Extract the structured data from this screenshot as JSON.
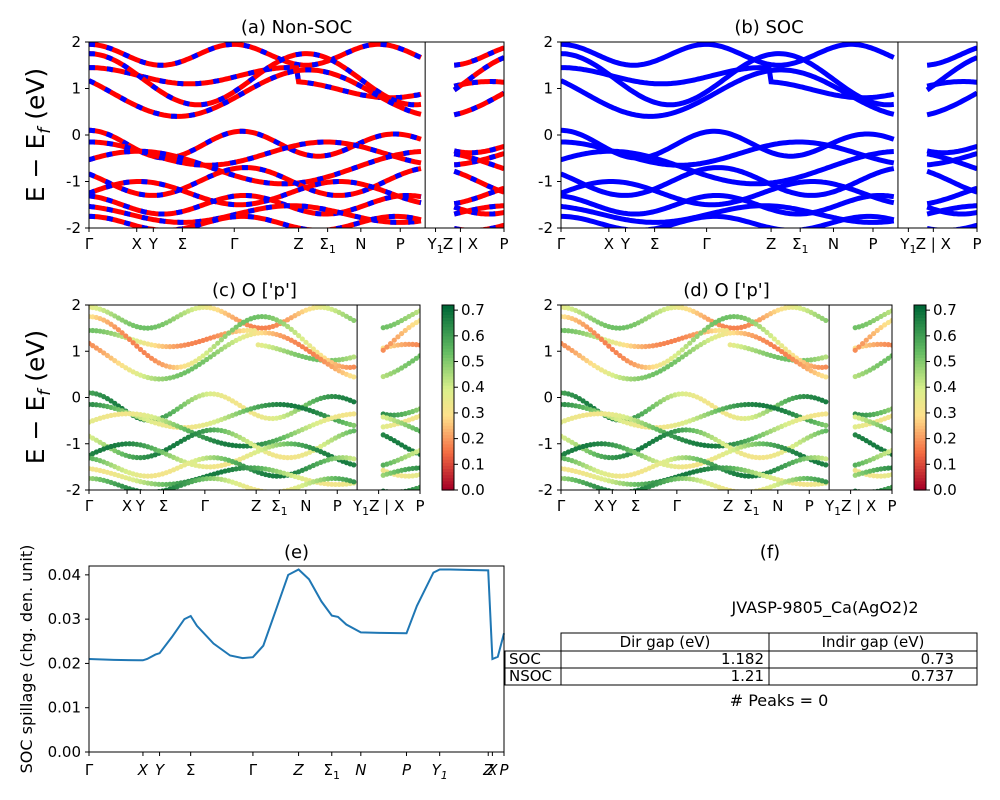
{
  "figure": {
    "title_text": "JVASP-9805_Ca(AgO2)2",
    "peaks_text": "# Peaks = 0",
    "y_axis_label_main": "E − E",
    "y_axis_label_sub": "f",
    "y_axis_label_unit": " (eV)"
  },
  "chart_data": [
    {
      "id": "a",
      "type": "line",
      "title": "(a) Non-SOC",
      "ylim": [
        -2,
        2
      ],
      "yticks": [
        -2,
        -1,
        0,
        1,
        2
      ],
      "xticks": [
        "Γ",
        "X",
        "Y",
        "Σ",
        "Γ",
        "Z",
        "Σ1",
        "N",
        "P",
        "Y1",
        "Z | X",
        "P"
      ],
      "xtick_pos": [
        0,
        0.115,
        0.155,
        0.225,
        0.35,
        0.505,
        0.575,
        0.655,
        0.75,
        0.835,
        0.895,
        1.0
      ],
      "series_colors": [
        "#ff0000",
        "#0000ff"
      ]
    },
    {
      "id": "b",
      "type": "line",
      "title": "(b) SOC",
      "ylim": [
        -2,
        2
      ],
      "yticks": [
        -2,
        -1,
        0,
        1,
        2
      ],
      "xticks": [
        "Γ",
        "X",
        "Y",
        "Σ",
        "Γ",
        "Z",
        "Σ1",
        "N",
        "P",
        "Y1",
        "Z | X",
        "P"
      ],
      "xtick_pos": [
        0,
        0.115,
        0.155,
        0.225,
        0.35,
        0.505,
        0.575,
        0.655,
        0.75,
        0.835,
        0.895,
        1.0
      ],
      "series_colors": [
        "#0000ff"
      ]
    },
    {
      "id": "c",
      "type": "scatter",
      "title": "(c)  O ['p']",
      "ylim": [
        -2,
        2
      ],
      "yticks": [
        -2,
        -1,
        0,
        1,
        2
      ],
      "xticks": [
        "Γ",
        "X",
        "Y",
        "Σ",
        "Γ",
        "Z",
        "Σ1",
        "N",
        "P",
        "Y1Z | X",
        "P"
      ],
      "xtick_pos": [
        0,
        0.115,
        0.155,
        0.225,
        0.35,
        0.505,
        0.575,
        0.655,
        0.75,
        0.875,
        1.0
      ],
      "colorbar": {
        "min": 0.0,
        "max": 0.72,
        "ticks": [
          "0.0",
          "0.1",
          "0.2",
          "0.3",
          "0.4",
          "0.5",
          "0.6",
          "0.7"
        ]
      }
    },
    {
      "id": "d",
      "type": "scatter",
      "title": "(d) O ['p']",
      "ylim": [
        -2,
        2
      ],
      "yticks": [
        -2,
        -1,
        0,
        1,
        2
      ],
      "xticks": [
        "Γ",
        "X",
        "Y",
        "Σ",
        "Γ",
        "Z",
        "Σ1",
        "N",
        "P",
        "Y1Z | X",
        "P"
      ],
      "xtick_pos": [
        0,
        0.115,
        0.155,
        0.225,
        0.35,
        0.505,
        0.575,
        0.655,
        0.75,
        0.875,
        1.0
      ],
      "colorbar": {
        "min": 0.0,
        "max": 0.72,
        "ticks": [
          "0.0",
          "0.1",
          "0.2",
          "0.3",
          "0.4",
          "0.5",
          "0.6",
          "0.7"
        ]
      }
    },
    {
      "id": "e",
      "type": "line",
      "title": "(e)",
      "ylabel": "SOC spillage (chg. den. unit)",
      "ylim": [
        0,
        0.042
      ],
      "yticks": [
        "0.00",
        "0.01",
        "0.02",
        "0.03",
        "0.04"
      ],
      "ytick_vals": [
        0,
        0.01,
        0.02,
        0.03,
        0.04
      ],
      "xticks": [
        "Γ",
        "X",
        "Y",
        "Σ",
        "Γ",
        "Z",
        "Σ1",
        "N",
        "P",
        "Y1",
        "Z",
        "X",
        "P"
      ],
      "xtick_pos": [
        0,
        0.13,
        0.17,
        0.245,
        0.395,
        0.505,
        0.585,
        0.655,
        0.765,
        0.845,
        0.962,
        0.972,
        1.0
      ],
      "series": [
        {
          "name": "spillage",
          "color": "#1f77b4",
          "x": [
            0,
            0.06,
            0.12,
            0.13,
            0.14,
            0.16,
            0.17,
            0.2,
            0.23,
            0.245,
            0.26,
            0.3,
            0.34,
            0.37,
            0.395,
            0.42,
            0.45,
            0.48,
            0.505,
            0.53,
            0.56,
            0.585,
            0.6,
            0.62,
            0.655,
            0.7,
            0.765,
            0.79,
            0.83,
            0.845,
            0.87,
            0.92,
            0.962,
            0.972,
            0.985,
            1.0
          ],
          "values": [
            0.021,
            0.0208,
            0.0207,
            0.0207,
            0.021,
            0.022,
            0.0223,
            0.026,
            0.03,
            0.0307,
            0.0285,
            0.0245,
            0.0218,
            0.0212,
            0.0214,
            0.024,
            0.032,
            0.04,
            0.0412,
            0.039,
            0.034,
            0.0308,
            0.0305,
            0.0288,
            0.027,
            0.0269,
            0.0268,
            0.033,
            0.0405,
            0.0412,
            0.0412,
            0.0411,
            0.041,
            0.021,
            0.0215,
            0.0268
          ]
        }
      ]
    },
    {
      "id": "f",
      "type": "table",
      "title": "(f)",
      "columns": [
        "",
        "Dir gap (eV)",
        "Indir gap (eV)"
      ],
      "rows": [
        {
          "label": "SOC",
          "dir": "1.182",
          "indir": "0.73"
        },
        {
          "label": "NSOC",
          "dir": "1.21",
          "indir": "0.737"
        }
      ]
    }
  ]
}
